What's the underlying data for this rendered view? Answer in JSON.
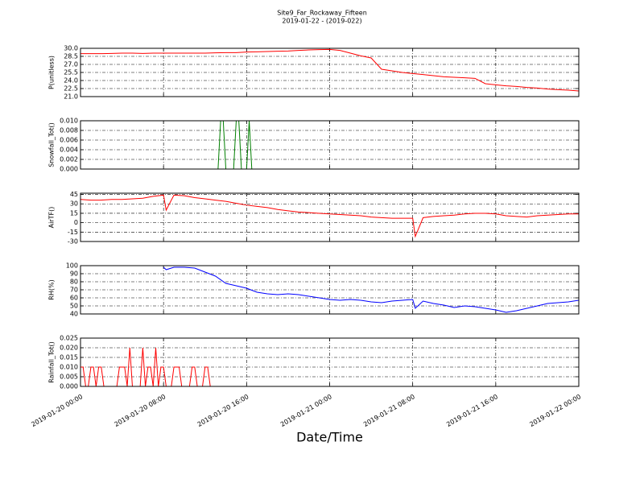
{
  "chart_data": [
    {
      "type": "line",
      "title": "Site9_Far_Rockaway_Fifteen",
      "subtitle": "2019-01-22 - (2019-022)",
      "ylabel": "P(unitless)",
      "color": "#ff0000",
      "grid": true,
      "xlim": [
        "2019-01-20 00:00",
        "2019-01-22 00:00"
      ],
      "xticks": [
        "2019-01-20 00:00",
        "2019-01-20 08:00",
        "2019-01-20 16:00",
        "2019-01-21 00:00",
        "2019-01-21 08:00",
        "2019-01-21 16:00",
        "2019-01-22 00:00"
      ],
      "ylim": [
        21,
        30
      ],
      "yticks": [
        {
          "value": 21,
          "label": "21.0"
        },
        {
          "value": 22.5,
          "label": "22.5"
        },
        {
          "value": 24,
          "label": "24.0"
        },
        {
          "value": 25.5,
          "label": "25.5"
        },
        {
          "value": 27,
          "label": "27.0"
        },
        {
          "value": 28.5,
          "label": "28.5"
        },
        {
          "value": 30,
          "label": "30.0"
        }
      ],
      "x": [
        "2019-01-20 00:00",
        "2019-01-20 01:00",
        "2019-01-20 02:00",
        "2019-01-20 03:00",
        "2019-01-20 04:00",
        "2019-01-20 05:00",
        "2019-01-20 06:00",
        "2019-01-20 07:00",
        "2019-01-20 08:00",
        "2019-01-20 09:00",
        "2019-01-20 10:00",
        "2019-01-20 11:00",
        "2019-01-20 12:00",
        "2019-01-20 13:00",
        "2019-01-20 14:00",
        "2019-01-20 15:00",
        "2019-01-20 16:00",
        "2019-01-20 17:00",
        "2019-01-20 18:00",
        "2019-01-20 19:00",
        "2019-01-20 20:00",
        "2019-01-20 21:00",
        "2019-01-20 22:00",
        "2019-01-20 23:00",
        "2019-01-21 00:00",
        "2019-01-21 01:00",
        "2019-01-21 02:00",
        "2019-01-21 03:00",
        "2019-01-21 04:00",
        "2019-01-21 05:00",
        "2019-01-21 06:00",
        "2019-01-21 07:00",
        "2019-01-21 08:00",
        "2019-01-21 09:00",
        "2019-01-21 10:00",
        "2019-01-21 11:00",
        "2019-01-21 12:00",
        "2019-01-21 13:00",
        "2019-01-21 14:00",
        "2019-01-21 15:00",
        "2019-01-21 16:00",
        "2019-01-21 17:00",
        "2019-01-21 18:00",
        "2019-01-21 19:00",
        "2019-01-21 20:00",
        "2019-01-21 21:00",
        "2019-01-21 22:00",
        "2019-01-21 23:00",
        "2019-01-22 00:00"
      ],
      "values": [
        29.0,
        29.0,
        29.0,
        29.05,
        29.1,
        29.1,
        29.05,
        29.1,
        29.1,
        29.1,
        29.1,
        29.1,
        29.1,
        29.15,
        29.2,
        29.2,
        29.3,
        29.35,
        29.4,
        29.45,
        29.5,
        29.6,
        29.7,
        29.75,
        29.8,
        29.6,
        29.1,
        28.6,
        28.2,
        26.1,
        25.8,
        25.5,
        25.3,
        25.1,
        24.9,
        24.7,
        24.6,
        24.5,
        24.4,
        23.4,
        23.2,
        23.0,
        22.9,
        22.7,
        22.6,
        22.4,
        22.3,
        22.2,
        22.05
      ]
    },
    {
      "type": "line",
      "ylabel": "Snowfall_Tot()",
      "color": "#007f00",
      "grid": true,
      "xlim": [
        "2019-01-20 00:00",
        "2019-01-22 00:00"
      ],
      "xticks": [
        "2019-01-20 00:00",
        "2019-01-20 08:00",
        "2019-01-20 16:00",
        "2019-01-21 00:00",
        "2019-01-21 08:00",
        "2019-01-21 16:00",
        "2019-01-22 00:00"
      ],
      "ylim": [
        0,
        0.01
      ],
      "yticks": [
        {
          "value": 0,
          "label": "0.000"
        },
        {
          "value": 0.002,
          "label": "0.002"
        },
        {
          "value": 0.004,
          "label": "0.004"
        },
        {
          "value": 0.006,
          "label": "0.006"
        },
        {
          "value": 0.008,
          "label": "0.008"
        },
        {
          "value": 0.01,
          "label": "0.010"
        }
      ],
      "x": [
        "2019-01-20 00:00",
        "2019-01-20 13:15",
        "2019-01-20 13:30",
        "2019-01-20 13:45",
        "2019-01-20 14:00",
        "2019-01-20 14:45",
        "2019-01-20 15:00",
        "2019-01-20 15:15",
        "2019-01-20 15:30",
        "2019-01-20 16:00",
        "2019-01-20 16:15",
        "2019-01-20 16:30",
        "2019-01-22 00:00"
      ],
      "values": [
        0,
        0,
        0.01,
        0.01,
        0,
        0,
        0.01,
        0.01,
        0,
        0,
        0.01,
        0,
        0
      ]
    },
    {
      "type": "line",
      "ylabel": "AirTF()",
      "color": "#ff0000",
      "grid": true,
      "xlim": [
        "2019-01-20 00:00",
        "2019-01-22 00:00"
      ],
      "xticks": [
        "2019-01-20 00:00",
        "2019-01-20 08:00",
        "2019-01-20 16:00",
        "2019-01-21 00:00",
        "2019-01-21 08:00",
        "2019-01-21 16:00",
        "2019-01-22 00:00"
      ],
      "ylim": [
        -30,
        47
      ],
      "yticks": [
        -30,
        -15,
        0,
        15,
        30,
        45
      ],
      "x": [
        "2019-01-20 00:00",
        "2019-01-20 01:00",
        "2019-01-20 02:00",
        "2019-01-20 03:00",
        "2019-01-20 04:00",
        "2019-01-20 05:00",
        "2019-01-20 06:00",
        "2019-01-20 07:00",
        "2019-01-20 08:00",
        "2019-01-20 08:15",
        "2019-01-20 09:00",
        "2019-01-20 10:00",
        "2019-01-20 11:00",
        "2019-01-20 12:00",
        "2019-01-20 13:00",
        "2019-01-20 14:00",
        "2019-01-20 15:00",
        "2019-01-20 16:00",
        "2019-01-20 17:00",
        "2019-01-20 18:00",
        "2019-01-20 19:00",
        "2019-01-20 20:00",
        "2019-01-20 21:00",
        "2019-01-20 22:00",
        "2019-01-20 23:00",
        "2019-01-21 00:00",
        "2019-01-21 01:00",
        "2019-01-21 02:00",
        "2019-01-21 03:00",
        "2019-01-21 04:00",
        "2019-01-21 05:00",
        "2019-01-21 06:00",
        "2019-01-21 07:00",
        "2019-01-21 08:00",
        "2019-01-21 08:15",
        "2019-01-21 09:00",
        "2019-01-21 10:00",
        "2019-01-21 11:00",
        "2019-01-21 12:00",
        "2019-01-21 13:00",
        "2019-01-21 14:00",
        "2019-01-21 15:00",
        "2019-01-21 16:00",
        "2019-01-21 17:00",
        "2019-01-21 18:00",
        "2019-01-21 19:00",
        "2019-01-21 20:00",
        "2019-01-21 21:00",
        "2019-01-21 22:00",
        "2019-01-21 23:00",
        "2019-01-22 00:00"
      ],
      "values": [
        37,
        36,
        36,
        37,
        37,
        38,
        39,
        42,
        44,
        20,
        44,
        43,
        40,
        38,
        36,
        34,
        31,
        28,
        26,
        24,
        21,
        19,
        17,
        16,
        15,
        14,
        13,
        12,
        11,
        9,
        8,
        7,
        7,
        7,
        -22,
        8,
        10,
        11,
        12,
        14,
        15,
        15,
        14,
        11,
        10,
        9,
        11,
        12,
        13,
        14,
        14
      ]
    },
    {
      "type": "line",
      "ylabel": "RH(%)",
      "color": "#0000ff",
      "grid": true,
      "xlim": [
        "2019-01-20 00:00",
        "2019-01-22 00:00"
      ],
      "xticks": [
        "2019-01-20 00:00",
        "2019-01-20 08:00",
        "2019-01-20 16:00",
        "2019-01-21 00:00",
        "2019-01-21 08:00",
        "2019-01-21 16:00",
        "2019-01-22 00:00"
      ],
      "ylim": [
        40,
        100
      ],
      "yticks": [
        40,
        50,
        60,
        70,
        80,
        90,
        100
      ],
      "x": [
        "2019-01-20 08:00",
        "2019-01-20 08:15",
        "2019-01-20 09:00",
        "2019-01-20 10:00",
        "2019-01-20 11:00",
        "2019-01-20 12:00",
        "2019-01-20 13:00",
        "2019-01-20 14:00",
        "2019-01-20 15:00",
        "2019-01-20 16:00",
        "2019-01-20 17:00",
        "2019-01-20 18:00",
        "2019-01-20 19:00",
        "2019-01-20 20:00",
        "2019-01-20 21:00",
        "2019-01-20 22:00",
        "2019-01-20 23:00",
        "2019-01-21 00:00",
        "2019-01-21 01:00",
        "2019-01-21 02:00",
        "2019-01-21 03:00",
        "2019-01-21 04:00",
        "2019-01-21 05:00",
        "2019-01-21 06:00",
        "2019-01-21 07:00",
        "2019-01-21 08:00",
        "2019-01-21 08:15",
        "2019-01-21 09:00",
        "2019-01-21 10:00",
        "2019-01-21 11:00",
        "2019-01-21 12:00",
        "2019-01-21 13:00",
        "2019-01-21 14:00",
        "2019-01-21 15:00",
        "2019-01-21 16:00",
        "2019-01-21 17:00",
        "2019-01-21 18:00",
        "2019-01-21 19:00",
        "2019-01-21 20:00",
        "2019-01-21 21:00",
        "2019-01-21 22:00",
        "2019-01-21 23:00",
        "2019-01-22 00:00"
      ],
      "values": [
        98,
        95,
        98,
        98,
        97,
        92,
        87,
        78,
        75,
        72,
        67,
        65,
        64,
        65,
        64,
        62,
        60,
        58,
        57,
        58,
        57,
        55,
        54,
        56,
        57,
        58,
        47,
        56,
        53,
        51,
        48,
        50,
        49,
        47,
        45,
        42,
        44,
        47,
        50,
        53,
        54,
        55,
        57
      ]
    },
    {
      "type": "line",
      "ylabel": "Rainfall_Tot()",
      "xlabel": "Date/Time",
      "color": "#ff0000",
      "grid": true,
      "xlim": [
        "2019-01-20 00:00",
        "2019-01-22 00:00"
      ],
      "xticks": [
        "2019-01-20 00:00",
        "2019-01-20 08:00",
        "2019-01-20 16:00",
        "2019-01-21 00:00",
        "2019-01-21 08:00",
        "2019-01-21 16:00",
        "2019-01-22 00:00"
      ],
      "ylim": [
        0,
        0.025
      ],
      "yticks": [
        {
          "value": 0,
          "label": "0.000"
        },
        {
          "value": 0.005,
          "label": "0.005"
        },
        {
          "value": 0.01,
          "label": "0.010"
        },
        {
          "value": 0.015,
          "label": "0.015"
        },
        {
          "value": 0.02,
          "label": "0.020"
        },
        {
          "value": 0.025,
          "label": "0.025"
        }
      ],
      "x": [
        "2019-01-20 00:00",
        "2019-01-20 00:15",
        "2019-01-20 00:30",
        "2019-01-20 00:45",
        "2019-01-20 01:00",
        "2019-01-20 01:15",
        "2019-01-20 01:30",
        "2019-01-20 01:45",
        "2019-01-20 02:00",
        "2019-01-20 02:15",
        "2019-01-20 03:30",
        "2019-01-20 03:45",
        "2019-01-20 04:00",
        "2019-01-20 04:15",
        "2019-01-20 04:30",
        "2019-01-20 04:45",
        "2019-01-20 05:00",
        "2019-01-20 05:45",
        "2019-01-20 06:00",
        "2019-01-20 06:15",
        "2019-01-20 06:30",
        "2019-01-20 06:45",
        "2019-01-20 07:00",
        "2019-01-20 07:15",
        "2019-01-20 07:30",
        "2019-01-20 07:45",
        "2019-01-20 08:00",
        "2019-01-20 08:15",
        "2019-01-20 08:45",
        "2019-01-20 09:00",
        "2019-01-20 09:15",
        "2019-01-20 09:30",
        "2019-01-20 09:45",
        "2019-01-20 10:30",
        "2019-01-20 10:45",
        "2019-01-20 11:00",
        "2019-01-20 11:15",
        "2019-01-20 11:45",
        "2019-01-20 12:00",
        "2019-01-20 12:15",
        "2019-01-20 12:30",
        "2019-01-22 00:00"
      ],
      "values": [
        0.01,
        0.01,
        0,
        0,
        0.01,
        0.01,
        0,
        0.01,
        0.01,
        0,
        0,
        0.01,
        0.01,
        0.01,
        0,
        0.02,
        0,
        0,
        0.02,
        0,
        0.01,
        0.01,
        0,
        0.02,
        0,
        0.01,
        0.01,
        0,
        0,
        0.01,
        0.01,
        0.01,
        0,
        0,
        0.01,
        0.01,
        0,
        0,
        0.01,
        0.01,
        0,
        0
      ]
    }
  ]
}
